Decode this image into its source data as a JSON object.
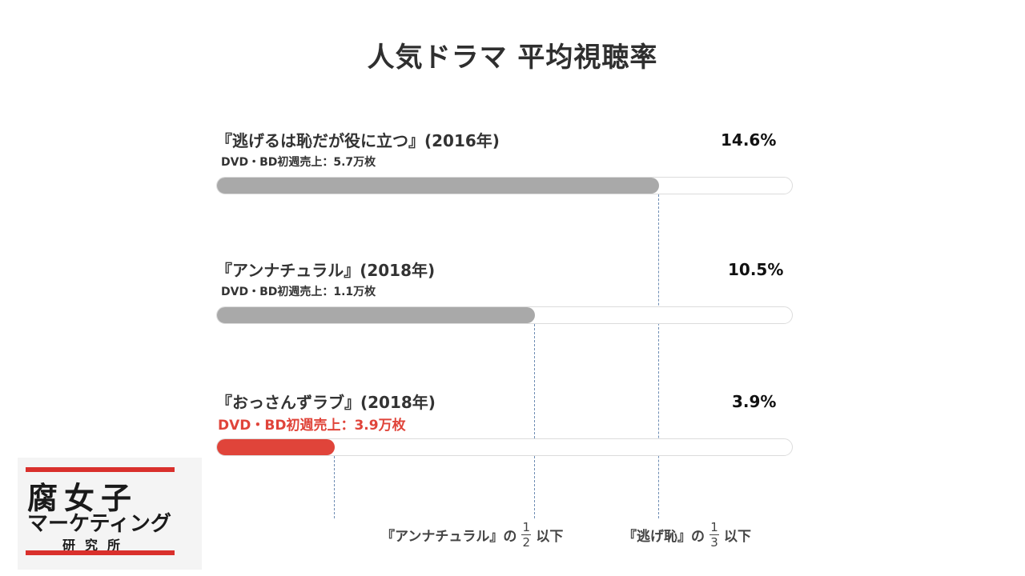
{
  "chart_data": {
    "type": "bar",
    "orientation": "horizontal",
    "title": "人気ドラマ 平均視聴率",
    "unit": "%",
    "categories": [
      "『逃げるは恥だが役に立つ』(2016年)",
      "『アンナチュラル』(2018年)",
      "『おっさんずラブ』(2018年)"
    ],
    "values": [
      14.6,
      10.5,
      3.9
    ],
    "value_labels": [
      "14.6%",
      "10.5%",
      "3.9%"
    ],
    "sublabels": [
      "DVD・BD初週売上：5.7万枚",
      "DVD・BD初週売上：1.1万枚",
      "DVD・BD初週売上：3.9万枚"
    ],
    "bar_colors": [
      "#a9a9a9",
      "#a9a9a9",
      "#e0443a"
    ],
    "highlight_index": 2,
    "xlim": [
      0,
      19
    ],
    "annotations": {
      "note_unnatural_prefix": "『アンナチュラル』の",
      "note_unnatural_num": "1",
      "note_unnatural_den": "2",
      "note_unnatural_suffix": "以下",
      "note_nigehaji_prefix": "『逃げ恥』の",
      "note_nigehaji_num": "1",
      "note_nigehaji_den": "3",
      "note_nigehaji_suffix": "以下"
    },
    "grid": false,
    "legend": "none"
  },
  "logo": {
    "line1": "腐女子",
    "line2": "マーケティング",
    "line3": "研究所",
    "accent": "#d9302c"
  }
}
